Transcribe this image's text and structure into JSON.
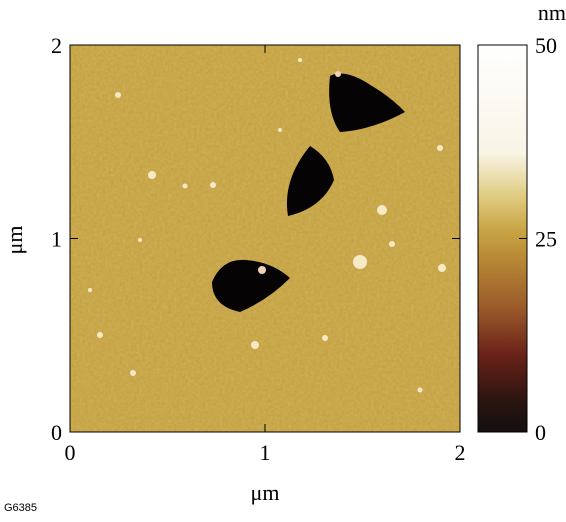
{
  "chart_data": {
    "type": "heatmap",
    "xlabel": "μm",
    "ylabel": "μm",
    "xlim": [
      0,
      2
    ],
    "xticks": [
      0,
      1,
      2
    ],
    "ylim": [
      0,
      2
    ],
    "yticks": [
      0,
      1,
      2
    ],
    "colorbar": {
      "label": "nm",
      "lim": [
        0,
        50
      ],
      "ticks": [
        0,
        25,
        50
      ]
    },
    "annotation": "G6385"
  }
}
